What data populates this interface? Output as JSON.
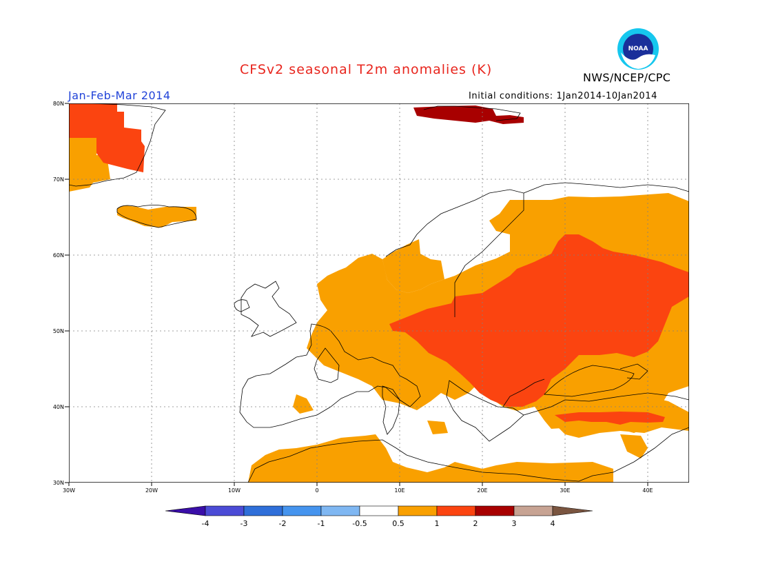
{
  "title": "CFSv2 seasonal T2m anomalies (K)",
  "season": "Jan-Feb-Mar 2014",
  "initial_conditions": "Initial conditions: 1Jan2014-10Jan2014",
  "agency": "NWS/NCEP/CPC",
  "logo_text": "NOAA",
  "lat_labels": [
    "80N",
    "70N",
    "60N",
    "50N",
    "40N",
    "30N"
  ],
  "lon_labels": [
    "30W",
    "20W",
    "10W",
    "0",
    "10E",
    "20E",
    "30E",
    "40E"
  ],
  "colorbar": {
    "tick_labels": [
      "-4",
      "-3",
      "-2",
      "-1",
      "-0.5",
      "0.5",
      "1",
      "2",
      "3",
      "4"
    ],
    "colors": [
      "#3a0ea8",
      "#4b4bd6",
      "#2f6fd9",
      "#4594ee",
      "#7fb7f2",
      "#ffffff",
      "#f9a000",
      "#fb4410",
      "#a80000",
      "#c7a393",
      "#7a5540"
    ]
  },
  "legend_levels": {
    "orange": "0.5 to 1",
    "red": "1 to 2",
    "dark_red": "2 to 3"
  }
}
